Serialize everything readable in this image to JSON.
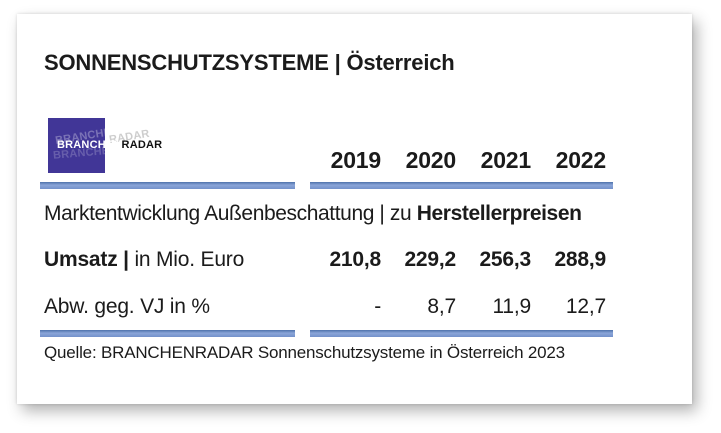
{
  "header": {
    "title": "SONNENSCHUTZSYSTEME | Österreich"
  },
  "logo": {
    "text_left": "BRANCHEN",
    "text_right": "RADAR"
  },
  "table": {
    "caption_regular": "Marktentwicklung Außenbeschattung | zu ",
    "caption_bold": "Herstellerpreisen",
    "row1_label_bold": "Umsatz | ",
    "row1_label_regular": "in Mio. Euro"
  },
  "chart_data": {
    "type": "table",
    "title": "Marktentwicklung Außenbeschattung | zu Herstellerpreisen",
    "categories": [
      "2019",
      "2020",
      "2021",
      "2022"
    ],
    "series": [
      {
        "name": "Umsatz | in Mio. Euro",
        "values": [
          "210,8",
          "229,2",
          "256,3",
          "288,9"
        ]
      },
      {
        "name": "Abw. geg. VJ in %",
        "values": [
          "-",
          "8,7",
          "11,9",
          "12,7"
        ]
      }
    ],
    "source": "Quelle: BRANCHENRADAR Sonnenschutzsysteme in Österreich 2023",
    "legend_position": "none",
    "grid": false
  },
  "colors": {
    "accent_bar": "#7391ca",
    "logo_purple": "#413697",
    "text": "#1b1b1b"
  }
}
